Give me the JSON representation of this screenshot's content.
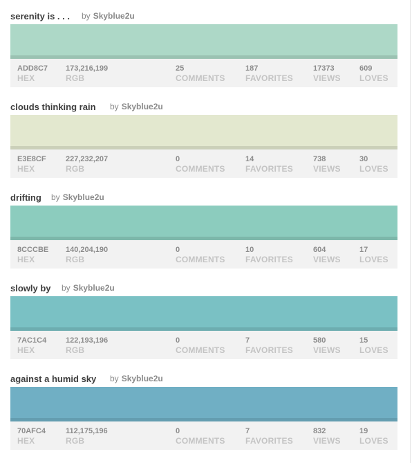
{
  "colors": [
    {
      "title": "serenity is . . .",
      "by": "by",
      "author": "Skyblue2u",
      "swatch": "#ADD8C7",
      "hex": "ADD8C7",
      "hex_label": "HEX",
      "rgb": "173,216,199",
      "rgb_label": "RGB",
      "comments": "25",
      "comments_label": "COMMENTS",
      "favorites": "187",
      "favorites_label": "FAVORITES",
      "views": "17373",
      "views_label": "VIEWS",
      "loves": "609",
      "loves_label": "LOVES"
    },
    {
      "title": "clouds thinking rain",
      "by": "by",
      "author": "Skyblue2u",
      "swatch": "#E3E8CF",
      "hex": "E3E8CF",
      "hex_label": "HEX",
      "rgb": "227,232,207",
      "rgb_label": "RGB",
      "comments": "0",
      "comments_label": "COMMENTS",
      "favorites": "14",
      "favorites_label": "FAVORITES",
      "views": "738",
      "views_label": "VIEWS",
      "loves": "30",
      "loves_label": "LOVES"
    },
    {
      "title": "drifting",
      "by": "by",
      "author": "Skyblue2u",
      "swatch": "#8CCCBE",
      "hex": "8CCCBE",
      "hex_label": "HEX",
      "rgb": "140,204,190",
      "rgb_label": "RGB",
      "comments": "0",
      "comments_label": "COMMENTS",
      "favorites": "10",
      "favorites_label": "FAVORITES",
      "views": "604",
      "views_label": "VIEWS",
      "loves": "17",
      "loves_label": "LOVES"
    },
    {
      "title": "slowly by",
      "by": "by",
      "author": "Skyblue2u",
      "swatch": "#7AC1C4",
      "hex": "7AC1C4",
      "hex_label": "HEX",
      "rgb": "122,193,196",
      "rgb_label": "RGB",
      "comments": "0",
      "comments_label": "COMMENTS",
      "favorites": "7",
      "favorites_label": "FAVORITES",
      "views": "580",
      "views_label": "VIEWS",
      "loves": "15",
      "loves_label": "LOVES"
    },
    {
      "title": "against a humid sky",
      "by": "by",
      "author": "Skyblue2u",
      "swatch": "#70AFC4",
      "hex": "70AFC4",
      "hex_label": "HEX",
      "rgb": "112,175,196",
      "rgb_label": "RGB",
      "comments": "0",
      "comments_label": "COMMENTS",
      "favorites": "7",
      "favorites_label": "FAVORITES",
      "views": "832",
      "views_label": "VIEWS",
      "loves": "19",
      "loves_label": "LOVES"
    }
  ]
}
